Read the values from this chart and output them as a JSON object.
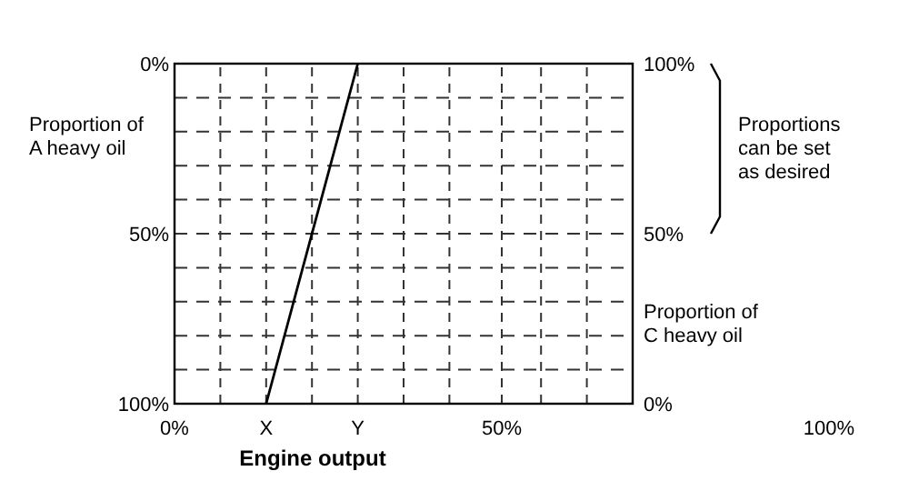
{
  "chart_data": {
    "type": "line",
    "xlabel": "Engine output",
    "ylabel": "Proportion of A heavy oil",
    "y2label": "Proportion of C heavy oil",
    "xlim": [
      0,
      70
    ],
    "xticks": [
      {
        "value": 0,
        "label": "0%"
      },
      {
        "value": 7,
        "label": null
      },
      {
        "value": 14,
        "label": "X"
      },
      {
        "value": 21,
        "label": null
      },
      {
        "value": 28,
        "label": "Y"
      },
      {
        "value": 35,
        "label": null
      },
      {
        "value": 42,
        "label": null
      },
      {
        "value": 50,
        "label": "50%"
      },
      {
        "value": 56,
        "label": null
      },
      {
        "value": 63,
        "label": null
      },
      {
        "value": 70,
        "label": null
      }
    ],
    "ylim": [
      100,
      0
    ],
    "yticks": [
      {
        "value": 0,
        "label": "0%"
      },
      {
        "value": 10,
        "label": null
      },
      {
        "value": 20,
        "label": null
      },
      {
        "value": 30,
        "label": null
      },
      {
        "value": 40,
        "label": null
      },
      {
        "value": 50,
        "label": "50%"
      },
      {
        "value": 60,
        "label": null
      },
      {
        "value": 70,
        "label": null
      },
      {
        "value": 80,
        "label": null
      },
      {
        "value": 90,
        "label": null
      },
      {
        "value": 100,
        "label": "100%"
      }
    ],
    "y2lim": [
      0,
      100
    ],
    "y2ticks": [
      {
        "value": 0,
        "label": "0%"
      },
      {
        "value": 50,
        "label": "50%"
      },
      {
        "value": 100,
        "label": "100%"
      }
    ],
    "grid": true,
    "line_style": "solid",
    "marker": "none",
    "series": [
      {
        "color": "#000000",
        "x": [
          14,
          28
        ],
        "values": [
          100,
          0
        ]
      }
    ],
    "annotations": [
      "Proportions can be set as desired",
      "100%"
    ]
  }
}
